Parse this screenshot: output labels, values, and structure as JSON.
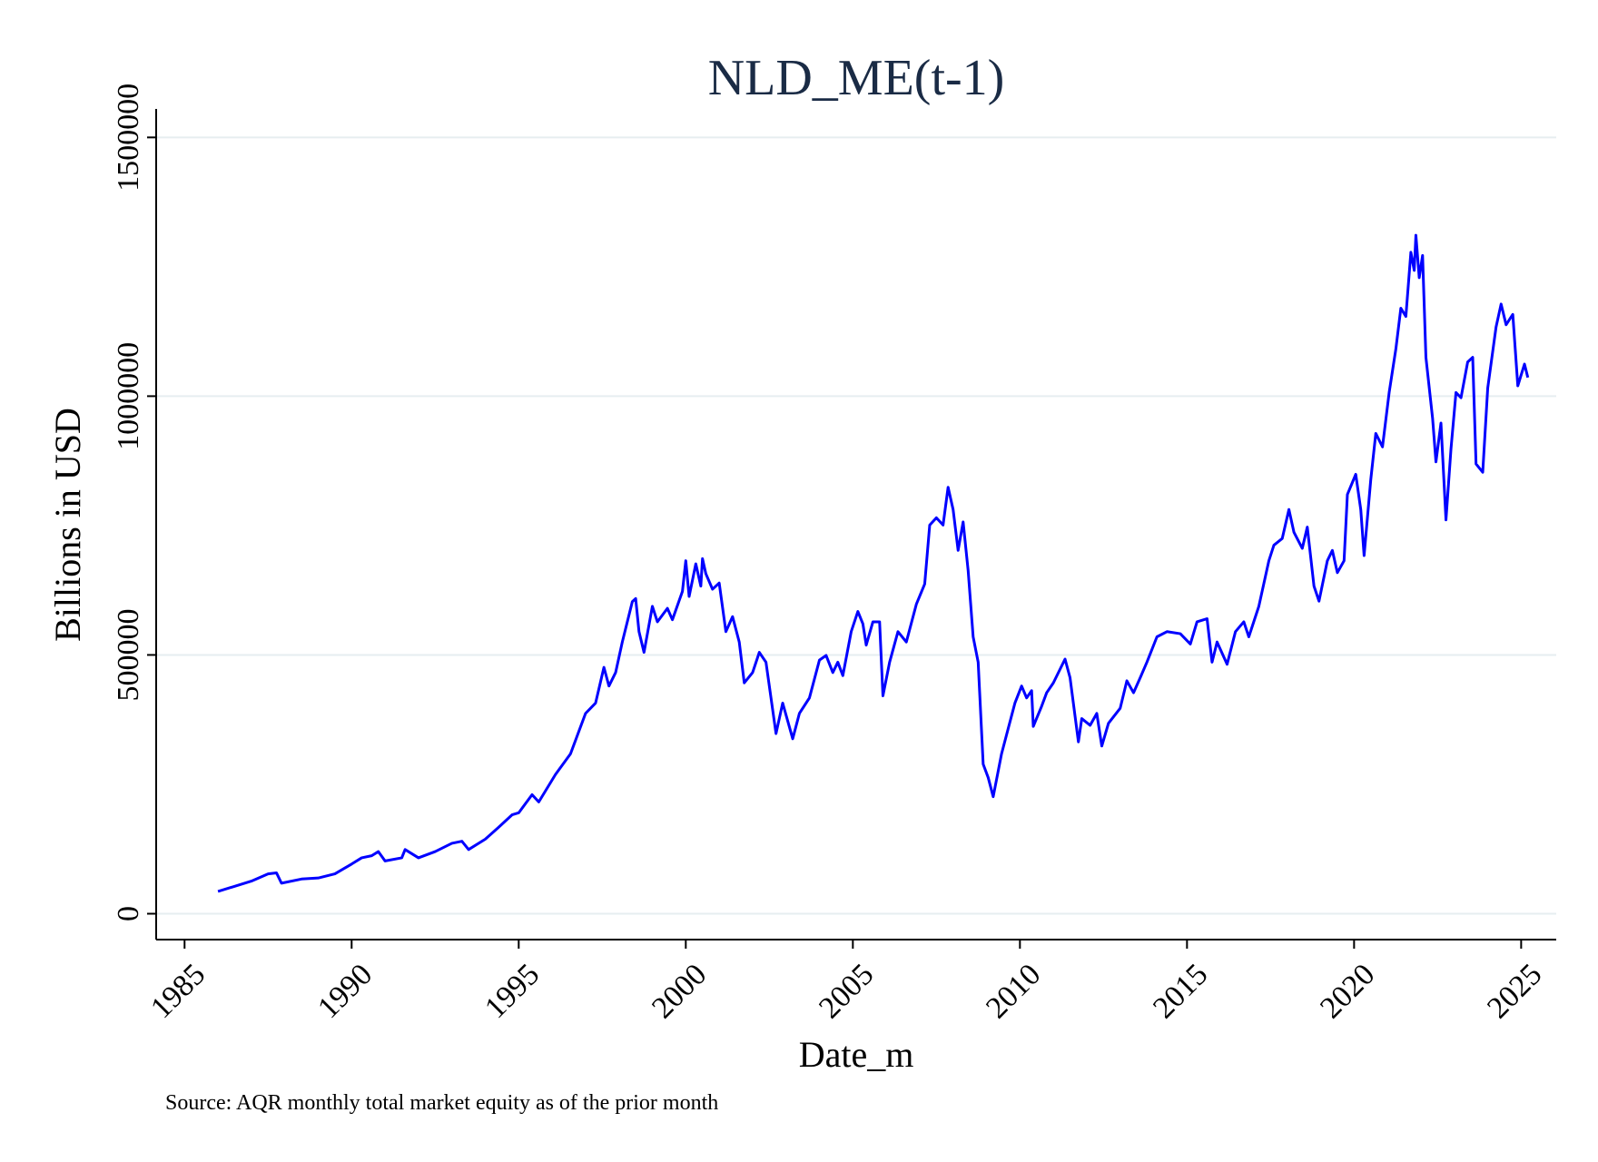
{
  "chart_data": {
    "type": "line",
    "title": "NLD_ME(t-1)",
    "x_label": "Date_m",
    "y_label": "Billions in USD",
    "note": "Source: AQR monthly total market equity as of the prior month",
    "color": "#0000ff",
    "grid": true,
    "xlim": [
      1984.15,
      2026.05
    ],
    "xticks": [
      1985,
      1990,
      1995,
      2000,
      2005,
      2010,
      2015,
      2020,
      2025
    ],
    "ylim": [
      -50000,
      1555000
    ],
    "yticks": [
      0,
      500000,
      1000000,
      1500000
    ],
    "x": [
      1986.0,
      1986.5,
      1987.0,
      1987.5,
      1987.75,
      1987.9,
      1988.5,
      1989.0,
      1989.5,
      1990.0,
      1990.3,
      1990.6,
      1990.8,
      1991.0,
      1991.5,
      1991.6,
      1992.0,
      1992.5,
      1993.0,
      1993.3,
      1993.5,
      1994.0,
      1994.4,
      1994.8,
      1995.0,
      1995.4,
      1995.6,
      1996.1,
      1996.55,
      1997.0,
      1997.3,
      1997.55,
      1997.7,
      1997.9,
      1998.1,
      1998.4,
      1998.5,
      1998.6,
      1998.75,
      1999.0,
      1999.15,
      1999.45,
      1999.6,
      1999.9,
      2000.0,
      2000.1,
      2000.3,
      2000.45,
      2000.5,
      2000.6,
      2000.8,
      2001.0,
      2001.2,
      2001.4,
      2001.6,
      2001.75,
      2002.0,
      2002.2,
      2002.4,
      2002.7,
      2002.9,
      2003.2,
      2003.4,
      2003.7,
      2004.0,
      2004.2,
      2004.4,
      2004.55,
      2004.7,
      2004.95,
      2005.15,
      2005.3,
      2005.4,
      2005.6,
      2005.8,
      2005.9,
      2006.1,
      2006.35,
      2006.6,
      2006.9,
      2007.15,
      2007.3,
      2007.5,
      2007.7,
      2007.85,
      2008.0,
      2008.15,
      2008.3,
      2008.45,
      2008.6,
      2008.75,
      2008.9,
      2009.05,
      2009.2,
      2009.45,
      2009.65,
      2009.85,
      2010.05,
      2010.2,
      2010.35,
      2010.4,
      2010.65,
      2010.8,
      2011.0,
      2011.35,
      2011.5,
      2011.75,
      2011.85,
      2012.1,
      2012.3,
      2012.45,
      2012.65,
      2013.0,
      2013.2,
      2013.4,
      2013.6,
      2013.8,
      2014.1,
      2014.4,
      2014.8,
      2015.1,
      2015.3,
      2015.6,
      2015.75,
      2015.9,
      2016.2,
      2016.45,
      2016.7,
      2016.85,
      2017.15,
      2017.45,
      2017.6,
      2017.85,
      2018.05,
      2018.2,
      2018.45,
      2018.6,
      2018.8,
      2018.95,
      2019.2,
      2019.35,
      2019.5,
      2019.7,
      2019.8,
      2020.05,
      2020.2,
      2020.3,
      2020.5,
      2020.65,
      2020.85,
      2021.05,
      2021.25,
      2021.4,
      2021.55,
      2021.7,
      2021.8,
      2021.85,
      2021.95,
      2022.05,
      2022.15,
      2022.35,
      2022.45,
      2022.6,
      2022.75,
      2022.9,
      2023.05,
      2023.2,
      2023.4,
      2023.55,
      2023.65,
      2023.85,
      2024.0,
      2024.25,
      2024.4,
      2024.55,
      2024.75,
      2024.9,
      2025.1,
      2025.2
    ],
    "values": [
      43000,
      53000,
      63000,
      77000,
      79000,
      59000,
      67000,
      69000,
      77000,
      96000,
      108000,
      112000,
      120000,
      102000,
      108000,
      124000,
      108000,
      120000,
      136000,
      140000,
      124000,
      144000,
      167000,
      191000,
      195000,
      230000,
      216000,
      269000,
      309000,
      387000,
      407000,
      476000,
      440000,
      466000,
      525000,
      603000,
      609000,
      545000,
      505000,
      594000,
      564000,
      590000,
      568000,
      623000,
      682000,
      613000,
      676000,
      633000,
      686000,
      657000,
      627000,
      639000,
      545000,
      574000,
      525000,
      446000,
      466000,
      505000,
      486000,
      348000,
      407000,
      338000,
      387000,
      417000,
      490000,
      499000,
      466000,
      486000,
      460000,
      545000,
      584000,
      560000,
      519000,
      564000,
      564000,
      421000,
      486000,
      545000,
      525000,
      598000,
      637000,
      751000,
      765000,
      751000,
      824000,
      781000,
      702000,
      757000,
      663000,
      535000,
      486000,
      289000,
      263000,
      226000,
      309000,
      358000,
      407000,
      440000,
      417000,
      431000,
      362000,
      401000,
      427000,
      446000,
      492000,
      456000,
      332000,
      377000,
      364000,
      387000,
      324000,
      368000,
      397000,
      450000,
      427000,
      456000,
      486000,
      535000,
      545000,
      541000,
      521000,
      564000,
      570000,
      486000,
      525000,
      482000,
      545000,
      564000,
      535000,
      594000,
      682000,
      712000,
      725000,
      781000,
      737000,
      706000,
      747000,
      633000,
      604000,
      682000,
      702000,
      659000,
      682000,
      810000,
      849000,
      781000,
      692000,
      839000,
      928000,
      902000,
      1007000,
      1091000,
      1170000,
      1154000,
      1278000,
      1243000,
      1311000,
      1229000,
      1272000,
      1075000,
      957000,
      873000,
      948000,
      761000,
      898000,
      1007000,
      997000,
      1066000,
      1075000,
      869000,
      853000,
      1016000,
      1134000,
      1178000,
      1138000,
      1158000,
      1020000,
      1062000,
      1036000
    ]
  }
}
